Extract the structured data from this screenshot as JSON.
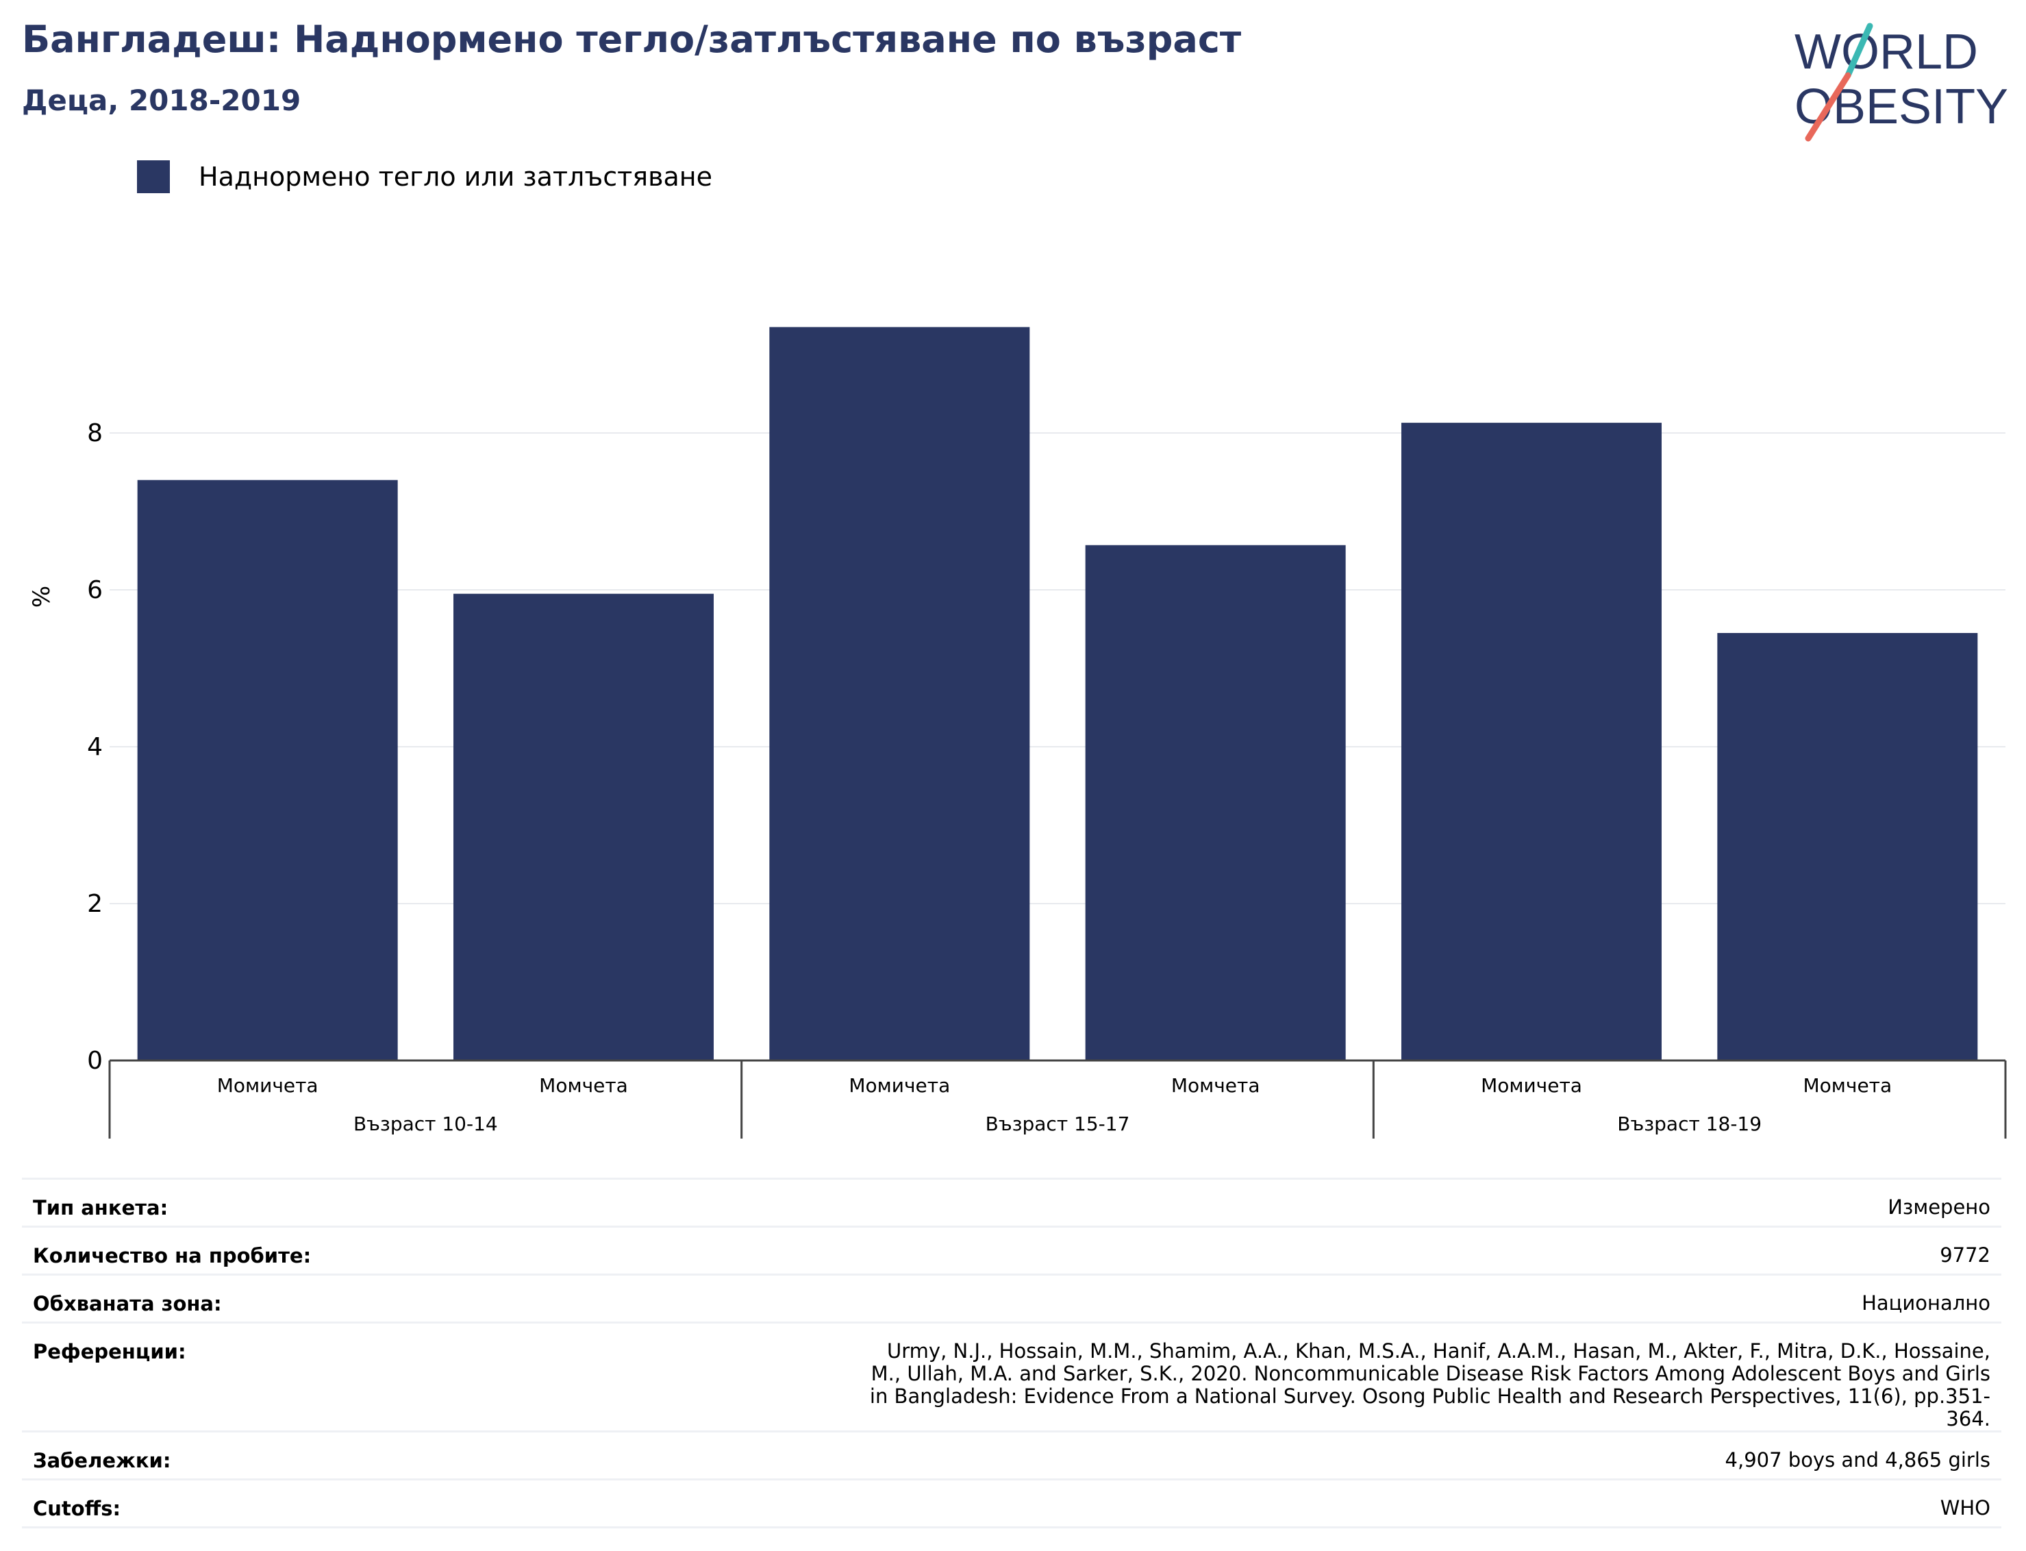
{
  "header": {
    "title": "Бангладеш: Наднормено тегло/затлъстяване по възраст",
    "subtitle": "Деца, 2018-2019"
  },
  "logo": {
    "line1": "WORLD",
    "line2": "OBESITY",
    "colors": {
      "text": "#2a3763",
      "slash_top": "#3bb8b3",
      "slash_bottom": "#e8685a"
    }
  },
  "legend": {
    "label": "Наднормено тегло или затлъстяване",
    "color": "#2a3763"
  },
  "chart_data": {
    "type": "bar",
    "title": "Бангладеш: Наднормено тегло/затлъстяване по възраст",
    "subtitle": "Деца, 2018-2019",
    "ylabel": "%",
    "ylim": [
      0,
      10
    ],
    "yticks": [
      0,
      2,
      4,
      6,
      8
    ],
    "grid": true,
    "legend_position": "top-left",
    "groups": [
      {
        "label": "Възраст 10-14",
        "categories": [
          "Момичета",
          "Момчета"
        ],
        "values": [
          7.4,
          5.95
        ]
      },
      {
        "label": "Възраст 15-17",
        "categories": [
          "Момичета",
          "Момчета"
        ],
        "values": [
          9.35,
          6.57
        ]
      },
      {
        "label": "Възраст 18-19",
        "categories": [
          "Момичета",
          "Момчета"
        ],
        "values": [
          8.13,
          5.45
        ]
      }
    ],
    "series": [
      {
        "name": "Наднормено тегло или затлъстяване",
        "color": "#2a3763"
      }
    ]
  },
  "info": [
    {
      "key": "Тип анкета:",
      "value": "Измерено"
    },
    {
      "key": "Количество на пробите:",
      "value": "9772"
    },
    {
      "key": "Обхваната зона:",
      "value": "Национално"
    },
    {
      "key": "Референции:",
      "value": "Urmy, N.J., Hossain, M.M., Shamim, A.A., Khan, M.S.A., Hanif, A.A.M., Hasan, M., Akter, F., Mitra, D.K., Hossaine, M., Ullah, M.A. and Sarker, S.K., 2020. Noncommunicable Disease Risk Factors Among Adolescent Boys and Girls in Bangladesh: Evidence From a National Survey. Osong Public Health and Research Perspectives, 11(6), pp.351-364."
    },
    {
      "key": "Забележки:",
      "value": "4,907 boys and 4,865 girls"
    },
    {
      "key": "Cutoffs:",
      "value": "WHO"
    }
  ]
}
